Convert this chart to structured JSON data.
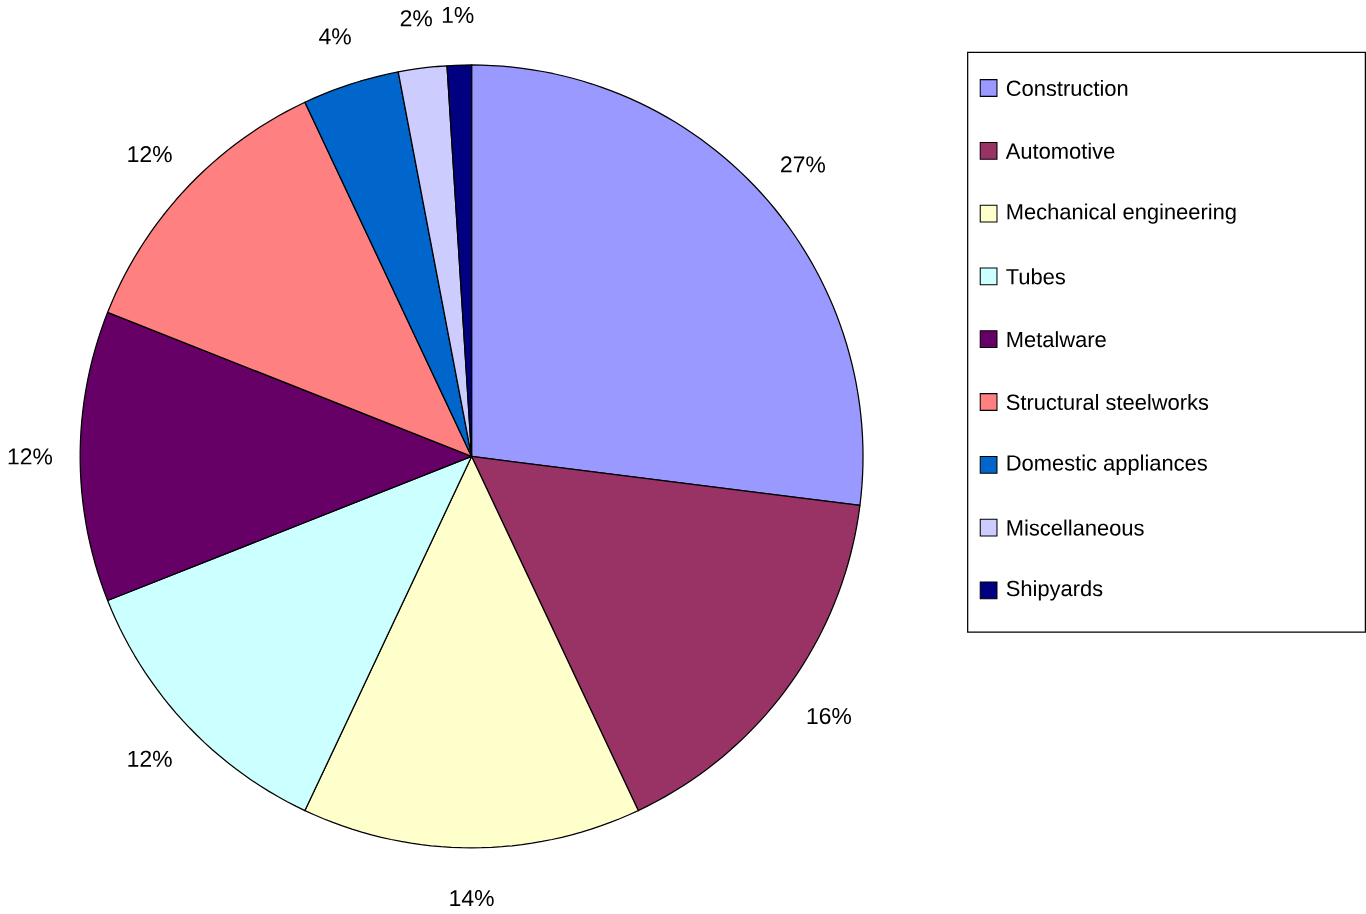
{
  "chart_data": {
    "type": "pie",
    "categories": [
      "Construction",
      "Automotive",
      "Mechanical engineering",
      "Tubes",
      "Metalware",
      "Structural steelworks",
      "Domestic appliances",
      "Miscellaneous",
      "Shipyards"
    ],
    "values": [
      27,
      16,
      14,
      12,
      12,
      12,
      4,
      2,
      1
    ],
    "value_labels": [
      "27%",
      "16%",
      "14%",
      "12%",
      "12%",
      "12%",
      "4%",
      "2%",
      "1%"
    ],
    "colors": [
      "#9999ff",
      "#993366",
      "#ffffcc",
      "#ccffff",
      "#660066",
      "#ff8080",
      "#0066cc",
      "#ccccff",
      "#000080"
    ],
    "legend": "right"
  }
}
